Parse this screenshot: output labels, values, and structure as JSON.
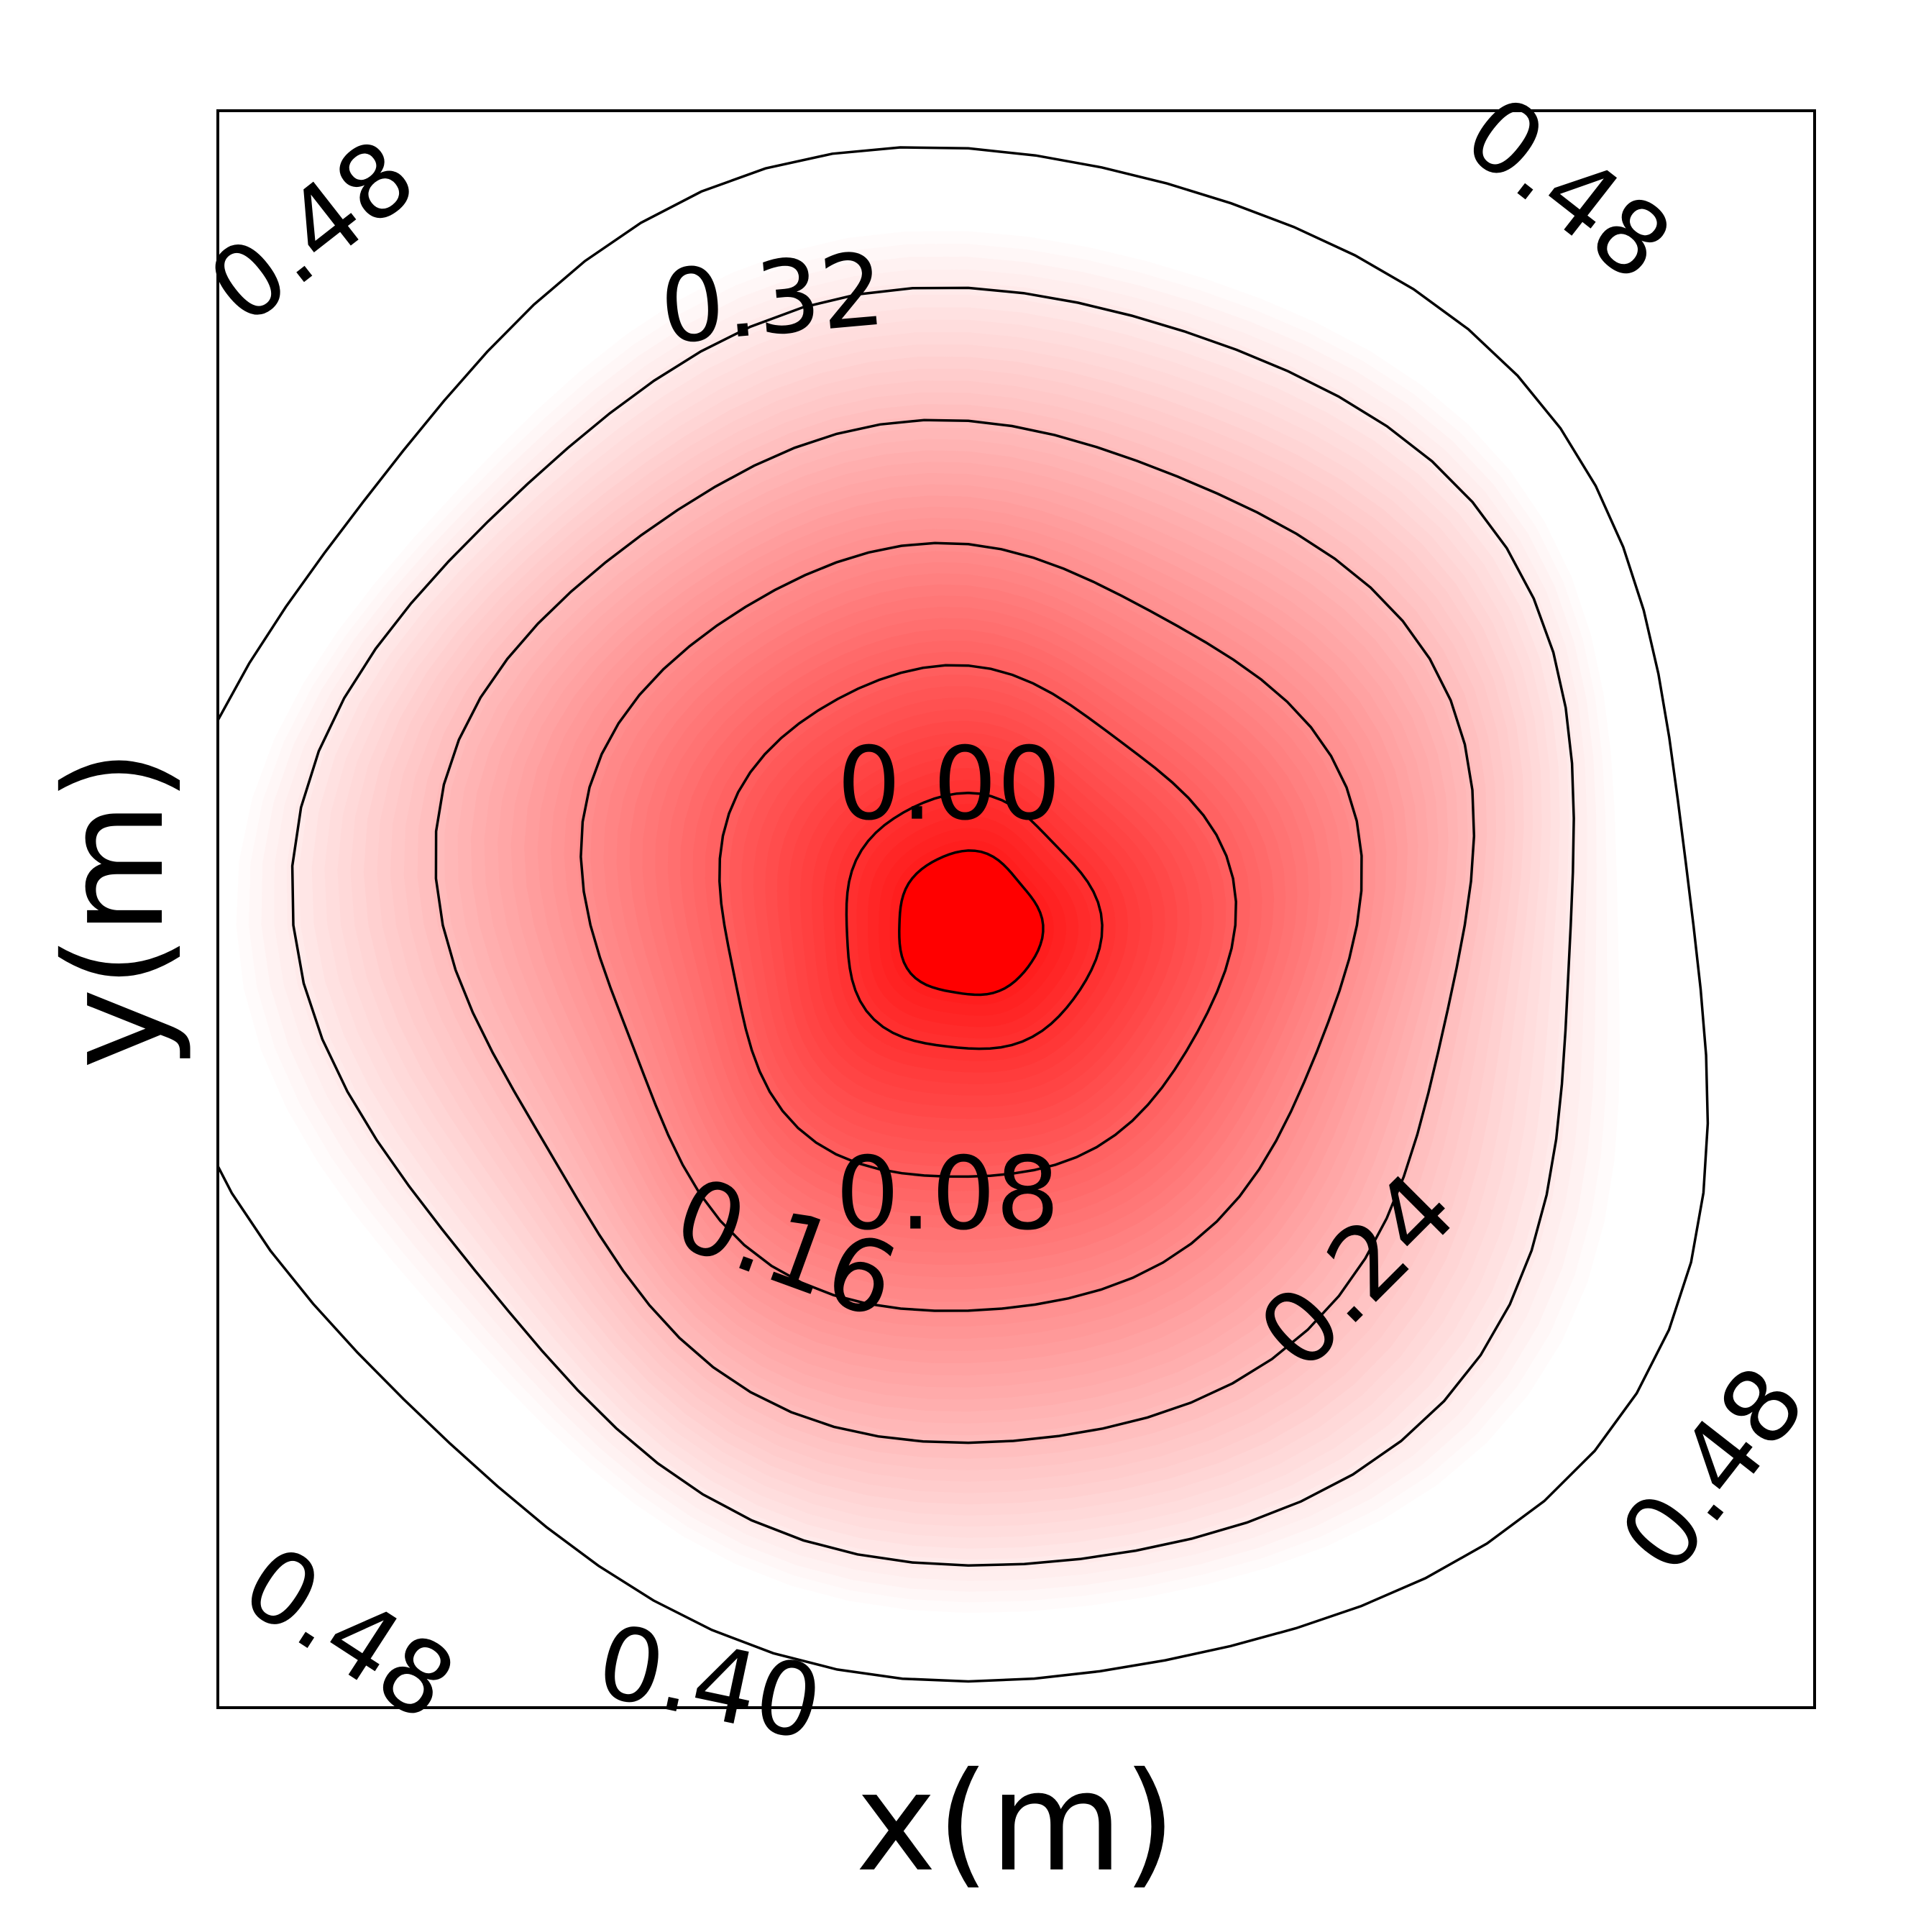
{
  "chart_data": {
    "type": "contour",
    "xlabel": "x(m)",
    "ylabel": "y(m)",
    "xlim": [
      0,
      1
    ],
    "ylim": [
      0,
      1
    ],
    "center": [
      0.47,
      0.49
    ],
    "colormap": "Reds_r",
    "fill_min_color": "#ff0000",
    "fill_max_color": "#ffffff",
    "fill_max_value": 0.44,
    "levels": [
      0.0,
      0.08,
      0.16,
      0.24,
      0.32,
      0.4,
      0.48
    ],
    "contour_labels": [
      {
        "text": "0.00",
        "level": 0.0
      },
      {
        "text": "0.08",
        "level": 0.08
      },
      {
        "text": "0.16",
        "level": 0.16
      },
      {
        "text": "0.24",
        "level": 0.24
      },
      {
        "text": "0.32",
        "level": 0.32
      },
      {
        "text": "0.40",
        "level": 0.4
      },
      {
        "text": "0.48",
        "level": 0.48,
        "position": "top-left"
      },
      {
        "text": "0.48",
        "level": 0.48,
        "position": "top-right"
      },
      {
        "text": "0.48",
        "level": 0.48,
        "position": "bottom-left"
      },
      {
        "text": "0.48",
        "level": 0.48,
        "position": "bottom-right"
      }
    ],
    "grid": false,
    "legend": "none"
  }
}
